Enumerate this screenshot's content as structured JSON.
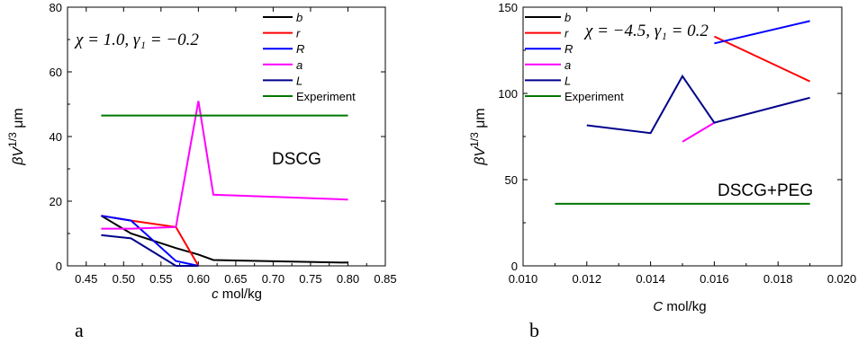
{
  "figure": {
    "panel_labels": [
      "a",
      "b"
    ]
  },
  "colors": {
    "b": "#000000",
    "r": "#ff0000",
    "R": "#0000ff",
    "a": "#ff00ff",
    "L": "#00008b",
    "Experiment": "#007700"
  },
  "chart_data": [
    {
      "type": "line",
      "panel": "a",
      "xlabel_var": "c",
      "xlabel_unit": " mol/kg",
      "ylabel_main": "βV",
      "ylabel_sup": "1/3",
      "ylabel_unit": " μm",
      "xlim": [
        0.425,
        0.85
      ],
      "ylim": [
        0,
        80
      ],
      "x_ticks": [
        0.45,
        0.5,
        0.55,
        0.6,
        0.65,
        0.7,
        0.75,
        0.8,
        0.85
      ],
      "x_tick_labels": [
        "0.45",
        "0.50",
        "0.55",
        "0.60",
        "0.65",
        "0.70",
        "0.75",
        "0.80",
        "0.85"
      ],
      "y_ticks": [
        0,
        20,
        40,
        60,
        80
      ],
      "y_tick_labels": [
        "0",
        "20",
        "40",
        "60",
        "80"
      ],
      "annotation": "χ = 1.0, γ₁ = −0.2",
      "label_text": "DSCG",
      "legend_position": "top-right",
      "series": [
        {
          "key": "b",
          "name": "b",
          "italic": true,
          "x": [
            0.47,
            0.51,
            0.57,
            0.6,
            0.62,
            0.8
          ],
          "y": [
            15.5,
            10,
            5.5,
            3.5,
            1.8,
            1
          ]
        },
        {
          "key": "r",
          "name": "r",
          "italic": true,
          "x": [
            0.47,
            0.51,
            0.57,
            0.6
          ],
          "y": [
            15.5,
            14,
            12,
            0
          ]
        },
        {
          "key": "R",
          "name": "R",
          "italic": true,
          "x": [
            0.47,
            0.51,
            0.57,
            0.6
          ],
          "y": [
            15.5,
            14,
            1.5,
            0
          ]
        },
        {
          "key": "a",
          "name": "a",
          "italic": true,
          "x": [
            0.47,
            0.51,
            0.57,
            0.6,
            0.62,
            0.8
          ],
          "y": [
            11.5,
            11.5,
            12,
            51,
            22,
            20.5
          ]
        },
        {
          "key": "L",
          "name": "L",
          "italic": true,
          "x": [
            0.47,
            0.51,
            0.57,
            0.6
          ],
          "y": [
            9.5,
            8.5,
            0,
            0
          ]
        },
        {
          "key": "Experiment",
          "name": "Experiment",
          "italic": false,
          "x": [
            0.47,
            0.8
          ],
          "y": [
            46.5,
            46.5
          ]
        }
      ]
    },
    {
      "type": "line",
      "panel": "b",
      "xlabel_var": "C",
      "xlabel_unit": " mol/kg",
      "ylabel_main": "βV",
      "ylabel_sup": "1/3",
      "ylabel_unit": " μm",
      "xlim": [
        0.01,
        0.02
      ],
      "ylim": [
        0,
        150
      ],
      "x_ticks": [
        0.01,
        0.012,
        0.014,
        0.016,
        0.018,
        0.02
      ],
      "x_tick_labels": [
        "0.010",
        "0.012",
        "0.014",
        "0.016",
        "0.018",
        "0.020"
      ],
      "y_ticks": [
        0,
        50,
        100,
        150
      ],
      "y_tick_labels": [
        "0",
        "50",
        "100",
        "150"
      ],
      "annotation": "χ = −4.5, γ₁ = 0.2",
      "label_text": "DSCG+PEG",
      "legend_position": "top-left",
      "series": [
        {
          "key": "b",
          "name": "b",
          "italic": true,
          "x": [],
          "y": []
        },
        {
          "key": "r",
          "name": "r",
          "italic": true,
          "x": [
            0.016,
            0.019
          ],
          "y": [
            133,
            107
          ]
        },
        {
          "key": "R",
          "name": "R",
          "italic": true,
          "x": [
            0.016,
            0.019
          ],
          "y": [
            129,
            142
          ]
        },
        {
          "key": "a",
          "name": "a",
          "italic": true,
          "x": [
            0.015,
            0.016
          ],
          "y": [
            72,
            83
          ]
        },
        {
          "key": "L",
          "name": "L",
          "italic": true,
          "x": [
            0.012,
            0.014,
            0.015,
            0.016,
            0.019
          ],
          "y": [
            81.5,
            77,
            110,
            83,
            97.5
          ]
        },
        {
          "key": "Experiment",
          "name": "Experiment",
          "italic": false,
          "x": [
            0.011,
            0.019
          ],
          "y": [
            36,
            36
          ]
        }
      ]
    }
  ]
}
